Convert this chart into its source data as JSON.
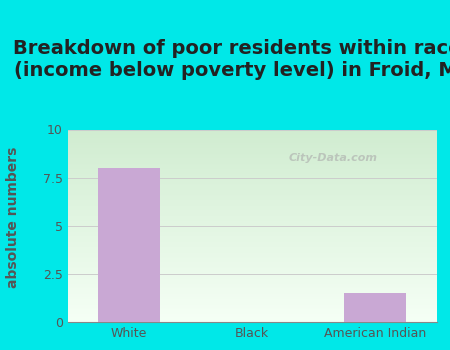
{
  "title": "Breakdown of poor residents within races\n(income below poverty level) in Froid, MT",
  "categories": [
    "White",
    "Black",
    "American Indian"
  ],
  "values": [
    8,
    0,
    1.5
  ],
  "bar_color": "#c9a8d4",
  "ylabel": "absolute numbers",
  "ylim": [
    0,
    10
  ],
  "yticks": [
    0,
    2.5,
    5,
    7.5,
    10
  ],
  "ytick_labels": [
    "0",
    "2.5",
    "5",
    "7.5",
    "10"
  ],
  "background_outer": "#00e8e8",
  "grid_color": "#cccccc",
  "title_fontsize": 14,
  "ylabel_fontsize": 10,
  "tick_fontsize": 9,
  "title_color": "#222222",
  "ylabel_color": "#555555",
  "tick_color": "#555555",
  "watermark": "City-Data.com",
  "bar_value_white": 8,
  "bar_value_american_indian": 1.5
}
